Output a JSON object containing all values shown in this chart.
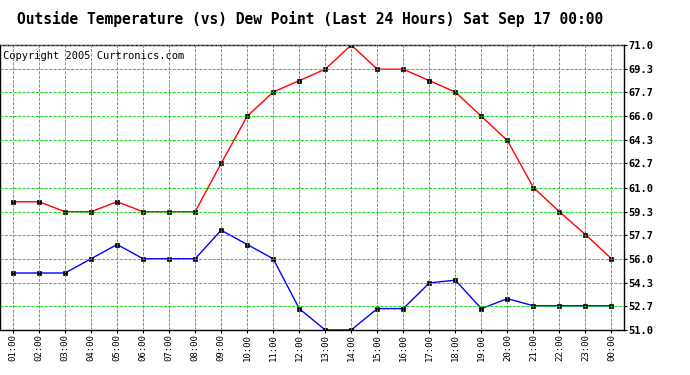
{
  "title": "Outside Temperature (vs) Dew Point (Last 24 Hours) Sat Sep 17 00:00",
  "copyright": "Copyright 2005 Curtronics.com",
  "x_labels": [
    "01:00",
    "02:00",
    "03:00",
    "04:00",
    "05:00",
    "06:00",
    "07:00",
    "08:00",
    "09:00",
    "10:00",
    "11:00",
    "12:00",
    "13:00",
    "14:00",
    "15:00",
    "16:00",
    "17:00",
    "18:00",
    "19:00",
    "20:00",
    "21:00",
    "22:00",
    "23:00",
    "00:00"
  ],
  "temp_red": [
    60.0,
    60.0,
    59.3,
    59.3,
    60.0,
    59.3,
    59.3,
    59.3,
    62.7,
    66.0,
    67.7,
    68.5,
    69.3,
    71.0,
    69.3,
    69.3,
    68.5,
    67.7,
    66.0,
    64.3,
    61.0,
    59.3,
    57.7,
    56.0
  ],
  "dew_blue": [
    55.0,
    55.0,
    55.0,
    56.0,
    57.0,
    56.0,
    56.0,
    56.0,
    58.0,
    57.0,
    56.0,
    52.5,
    51.0,
    51.0,
    52.5,
    52.5,
    54.3,
    54.5,
    52.5,
    53.2,
    52.7,
    52.7,
    52.7,
    52.7
  ],
  "ylim_min": 51.0,
  "ylim_max": 71.0,
  "yticks": [
    51.0,
    52.7,
    54.3,
    56.0,
    57.7,
    59.3,
    61.0,
    62.7,
    64.3,
    66.0,
    67.7,
    69.3,
    71.0
  ],
  "bg_color": "#ffffff",
  "plot_bg_color": "#ffffff",
  "grid_color": "#00cc00",
  "red_line_color": "#ff0000",
  "blue_line_color": "#0000ff",
  "title_fontsize": 10.5,
  "copyright_fontsize": 7.5
}
